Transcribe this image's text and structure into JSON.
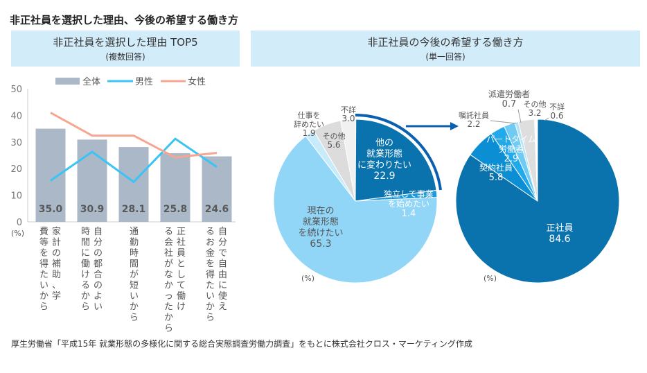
{
  "title": "非正社員を選択した理由、今後の希望する働き方",
  "left_panel": {
    "title": "非正社員を選択した理由 TOP5",
    "subtitle": "(複数回答)"
  },
  "right_panel": {
    "title": "非正社員の今後の希望する働き方",
    "subtitle": "(単一回答)"
  },
  "source": "厚生労働省「平成15年 就業形態の多様化に関する総合実態調査労働力調査」をもとに株式会社クロス・マーケティング作成",
  "chart_data": [
    {
      "type": "bar",
      "unit": "(%)",
      "ylim": [
        0,
        50
      ],
      "yticks": [
        0,
        10,
        20,
        30,
        40,
        50
      ],
      "legend_position": "top",
      "categories": [
        "家計の補助、学費等を得たいから",
        "自分の都合のよい時間に働けるから",
        "通勤時間が短いから",
        "正社員として働ける会社がなかったから",
        "自分で自由に使えるお金を得たいから"
      ],
      "series": [
        {
          "name": "全体",
          "type": "bar",
          "color": "#aab8c8",
          "values": [
            35.0,
            30.9,
            28.1,
            25.8,
            24.6
          ]
        },
        {
          "name": "男性",
          "type": "line",
          "color": "#3cc3f5",
          "values": [
            15.5,
            26.3,
            15.0,
            31.2,
            20.6
          ]
        },
        {
          "name": "女性",
          "type": "line",
          "color": "#f7a590",
          "values": [
            41.0,
            32.4,
            32.4,
            24.2,
            25.9
          ]
        }
      ]
    },
    {
      "type": "pie",
      "unit": "(%)",
      "slices": [
        {
          "label": "他の就業形態に変わりたい",
          "value": 22.9,
          "color": "#0a72ad"
        },
        {
          "label": "独立して事業を始めたい",
          "value": 1.4,
          "color": "#1e98dc"
        },
        {
          "label": "現在の就業形態を続けたい",
          "value": 65.3,
          "color": "#92d6f7"
        },
        {
          "label": "仕事を辞めたい",
          "value": 1.9,
          "color": "#c8ebfb"
        },
        {
          "label": "その他",
          "value": 5.6,
          "color": "#dcdcdc"
        },
        {
          "label": "不詳",
          "value": 3.0,
          "color": "#f1f1f1"
        }
      ]
    },
    {
      "type": "pie",
      "unit": "(%)",
      "slices": [
        {
          "label": "正社員",
          "value": 84.6,
          "color": "#0a72ad"
        },
        {
          "label": "契約社員",
          "value": 5.8,
          "color": "#0c8ed4"
        },
        {
          "label": "パートタイム労働者",
          "value": 2.9,
          "color": "#22a9ec"
        },
        {
          "label": "嘱託社員",
          "value": 2.2,
          "color": "#6fcaf4"
        },
        {
          "label": "派遣労働者",
          "value": 0.7,
          "color": "#b4e3f8"
        },
        {
          "label": "その他",
          "value": 3.2,
          "color": "#dedede"
        },
        {
          "label": "不詳",
          "value": 0.6,
          "color": "#ffffff"
        }
      ]
    }
  ]
}
